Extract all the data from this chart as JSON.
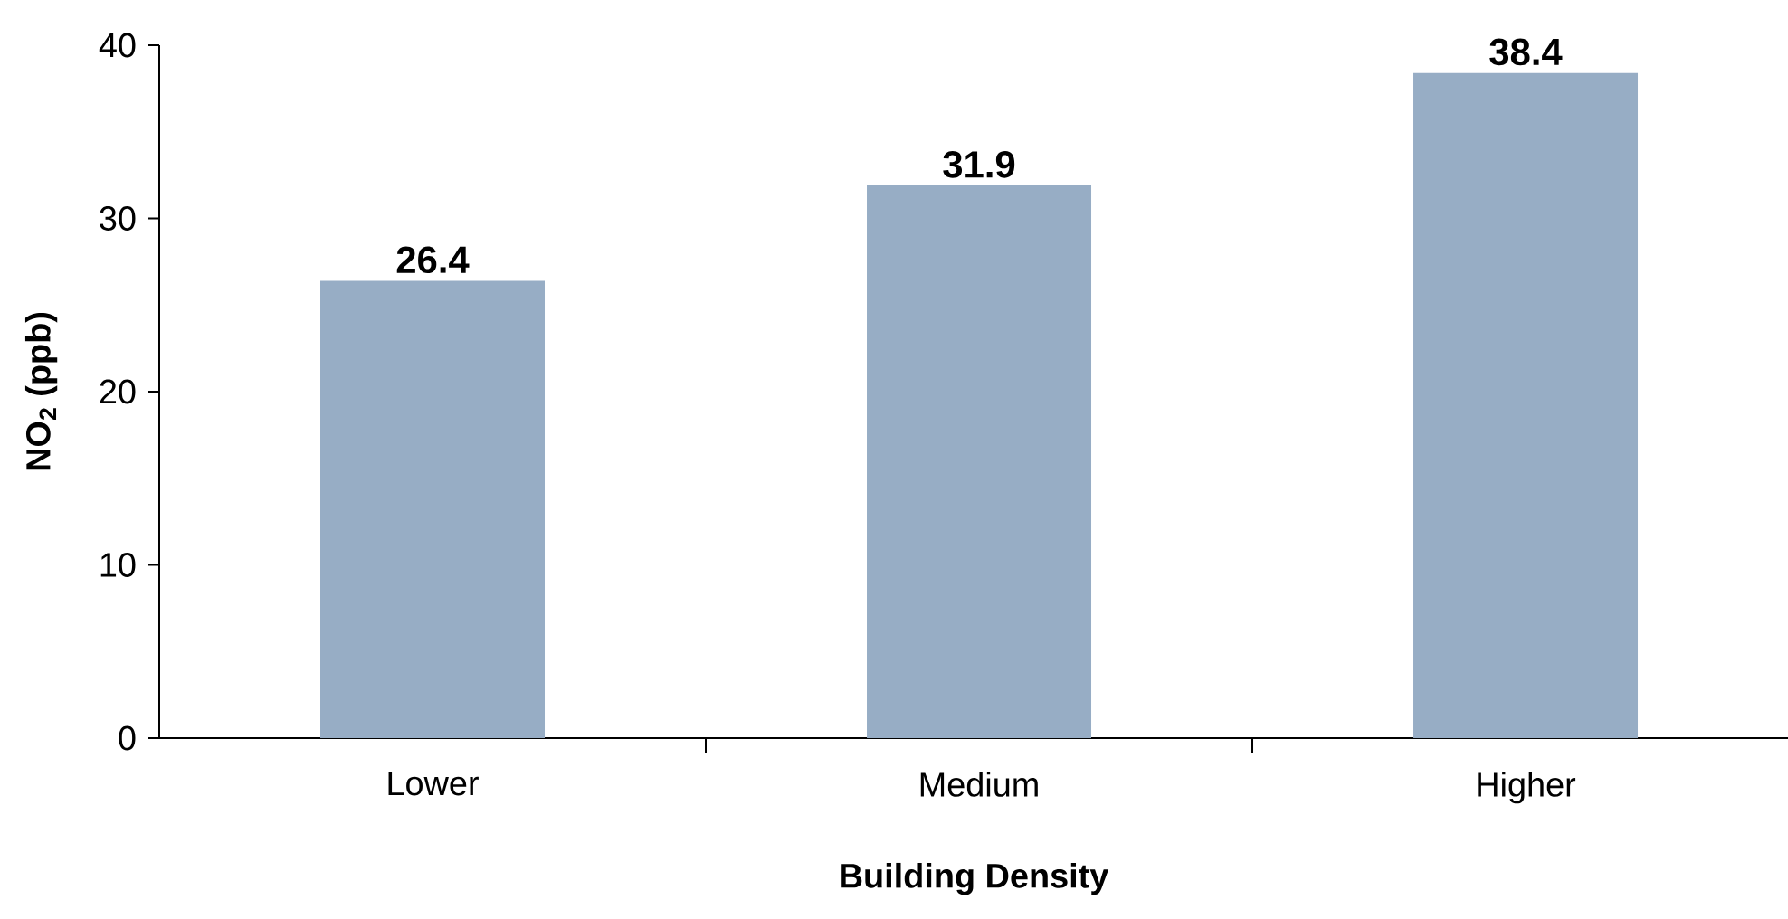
{
  "chart_data": {
    "type": "bar",
    "xlabel": "Building Density",
    "ylabel": "NO$_{2}$ (ppb)",
    "categories": [
      "Lower",
      "Medium",
      "Higher"
    ],
    "values": [
      26.4,
      31.9,
      38.4
    ],
    "color": "#97adc5",
    "ylim": [
      0,
      40
    ],
    "yticks": [
      0,
      10,
      20,
      30,
      40
    ],
    "data_labels": true
  }
}
